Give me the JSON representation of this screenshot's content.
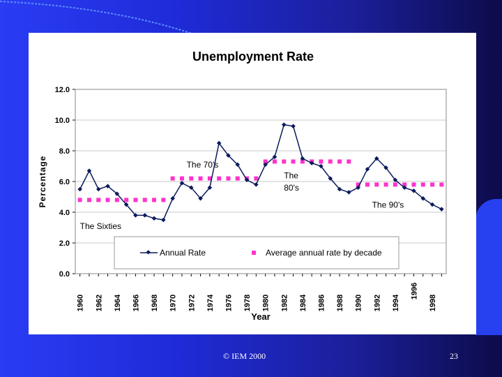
{
  "slide": {
    "footer": "© IEM 2000",
    "page_number": "23",
    "colors": {
      "series_line": "#0a1a5c",
      "decade_marker": "#ff33cc",
      "axis": "#000000",
      "gridline": "#c8c8c8"
    }
  },
  "chart_data": {
    "type": "line",
    "title": "Unemployment Rate",
    "xlabel": "Year",
    "ylabel": "Percentage",
    "ylim": [
      0,
      12
    ],
    "yticks": [
      "0.0",
      "2.0",
      "4.0",
      "6.0",
      "8.0",
      "10.0",
      "12.0"
    ],
    "x_tick_labels": [
      "1960",
      "1962",
      "1964",
      "1966",
      "1968",
      "1970",
      "1972",
      "1974",
      "1976",
      "1978",
      "1980",
      "1982",
      "1984",
      "1986",
      "1988",
      "1990",
      "1992",
      "1994",
      "1996",
      "1998"
    ],
    "series": [
      {
        "name": "Annual Rate",
        "years": [
          1960,
          1961,
          1962,
          1963,
          1964,
          1965,
          1966,
          1967,
          1968,
          1969,
          1970,
          1971,
          1972,
          1973,
          1974,
          1975,
          1976,
          1977,
          1978,
          1979,
          1980,
          1981,
          1982,
          1983,
          1984,
          1985,
          1986,
          1987,
          1988,
          1989,
          1990,
          1991,
          1992,
          1993,
          1994,
          1995,
          1996,
          1997,
          1998,
          1999
        ],
        "values": [
          5.5,
          6.7,
          5.5,
          5.7,
          5.2,
          4.5,
          3.8,
          3.8,
          3.6,
          3.5,
          4.9,
          5.9,
          5.6,
          4.9,
          5.6,
          8.5,
          7.7,
          7.1,
          6.1,
          5.8,
          7.1,
          7.6,
          9.7,
          9.6,
          7.5,
          7.2,
          7.0,
          6.2,
          5.5,
          5.3,
          5.6,
          6.8,
          7.5,
          6.9,
          6.1,
          5.6,
          5.4,
          4.9,
          4.5,
          4.2
        ]
      },
      {
        "name": "Average annual rate by decade",
        "decades": [
          {
            "start": 1960,
            "end": 1969,
            "value": 4.8
          },
          {
            "start": 1970,
            "end": 1979,
            "value": 6.2
          },
          {
            "start": 1980,
            "end": 1989,
            "value": 7.3
          },
          {
            "start": 1990,
            "end": 1999,
            "value": 5.8
          }
        ]
      }
    ],
    "annotations": [
      {
        "text": "The Sixties",
        "year": 1960.0,
        "value": 2.9
      },
      {
        "text": "The 70's",
        "year": 1971.5,
        "value": 6.9
      },
      {
        "text": "The",
        "year": 1982.0,
        "value": 6.2
      },
      {
        "text": "80's",
        "year": 1982.0,
        "value": 5.4
      },
      {
        "text": "The 90's",
        "year": 1991.5,
        "value": 4.3
      }
    ],
    "legend_position": "bottom"
  }
}
